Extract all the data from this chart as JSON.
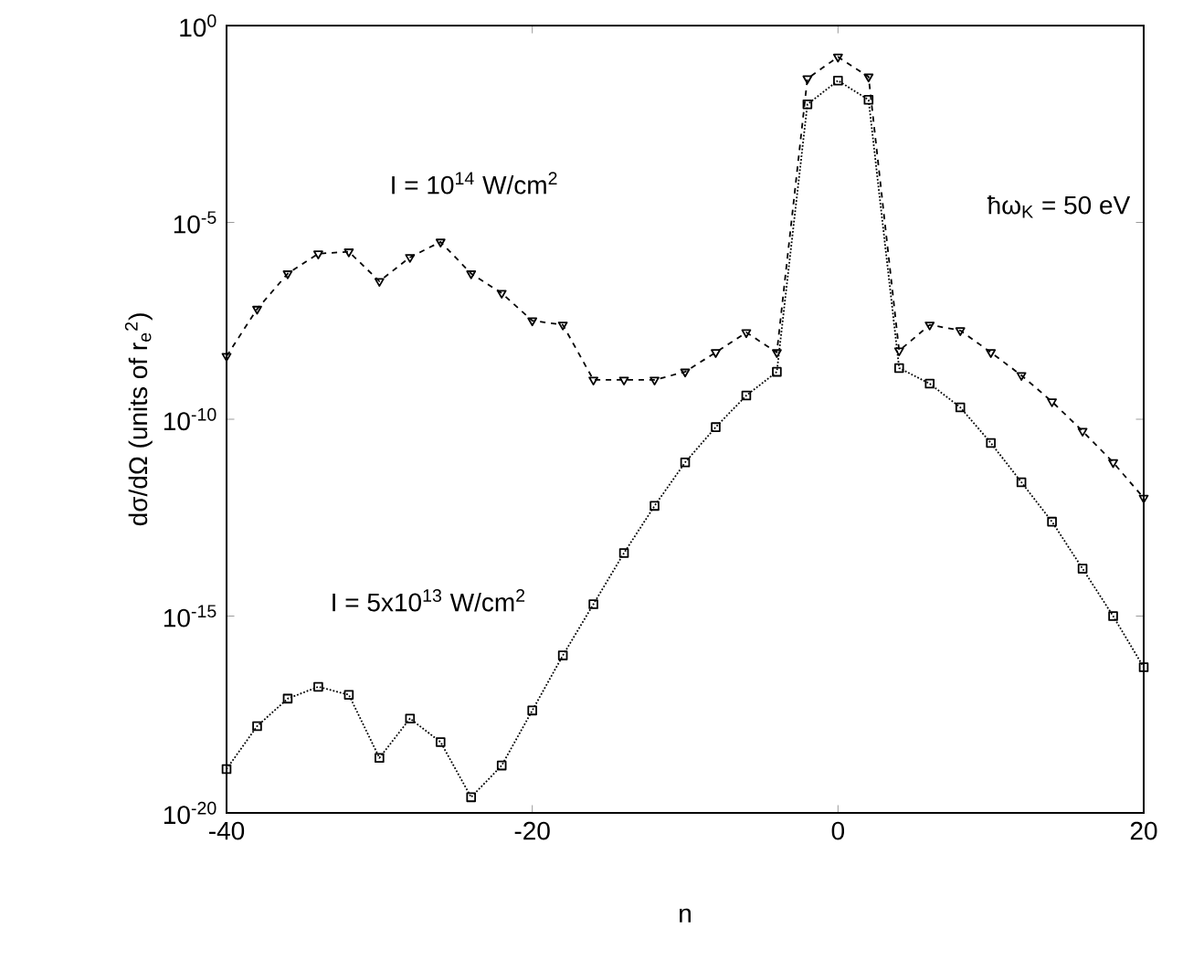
{
  "chart_data": {
    "type": "line",
    "xlabel": "n",
    "ylabel": "dσ/dΩ (units of r$_{e}$$^{2}$)",
    "x": [
      -40,
      -38,
      -36,
      -34,
      -32,
      -30,
      -28,
      -26,
      -24,
      -22,
      -20,
      -18,
      -16,
      -14,
      -12,
      -10,
      -8,
      -6,
      -4,
      -2,
      0,
      2,
      4,
      6,
      8,
      10,
      12,
      14,
      16,
      18,
      20
    ],
    "series": [
      {
        "name": "I = 10$^{14}$ W/cm$^{2}$",
        "color": "#000000",
        "marker": "triangle",
        "line_style": "dashed",
        "values": [
          4e-09,
          6.3e-08,
          5e-07,
          1.6e-06,
          1.8e-06,
          3.2e-07,
          1.3e-06,
          3.2e-06,
          5e-07,
          1.6e-07,
          3.2e-08,
          2.5e-08,
          1e-09,
          1e-09,
          1e-09,
          1.6e-09,
          5e-09,
          1.6e-08,
          5e-09,
          0.045,
          0.16,
          0.05,
          5.5e-09,
          2.5e-08,
          1.8e-08,
          5e-09,
          1.3e-09,
          2.8e-10,
          5e-11,
          8e-12,
          1e-12
        ]
      },
      {
        "name": "I = 5x10$^{13}$ W/cm$^{2}$",
        "color": "#000000",
        "marker": "square",
        "line_style": "dotted",
        "values": [
          1.3e-19,
          1.6e-18,
          8e-18,
          1.6e-17,
          1e-17,
          2.5e-19,
          2.5e-18,
          6.3e-19,
          2.5e-20,
          1.6e-19,
          4e-18,
          1e-16,
          2e-15,
          4e-14,
          6.3e-13,
          8e-12,
          6.3e-11,
          4e-10,
          1.6e-09,
          0.01,
          0.04,
          0.013,
          2e-09,
          8e-10,
          2e-10,
          2.5e-11,
          2.5e-12,
          2.5e-13,
          1.6e-14,
          1e-15,
          5e-17
        ]
      }
    ],
    "log": "y",
    "xlim": [
      -40,
      20
    ],
    "xticks": [
      -40,
      -20,
      0,
      20
    ],
    "ylim": [
      1e-20,
      1
    ],
    "yticks": [
      {
        "value": 1e-20,
        "label": "10$^{-20}$"
      },
      {
        "value": 1e-15,
        "label": "10$^{-15}$"
      },
      {
        "value": 1e-10,
        "label": "10$^{-10}$"
      },
      {
        "value": 1e-05,
        "label": "10$^{-5}$"
      },
      {
        "value": 1,
        "label": "10$^{0}$"
      }
    ],
    "annotations": [
      "ħω$_{K}$ = 50 eV"
    ]
  }
}
